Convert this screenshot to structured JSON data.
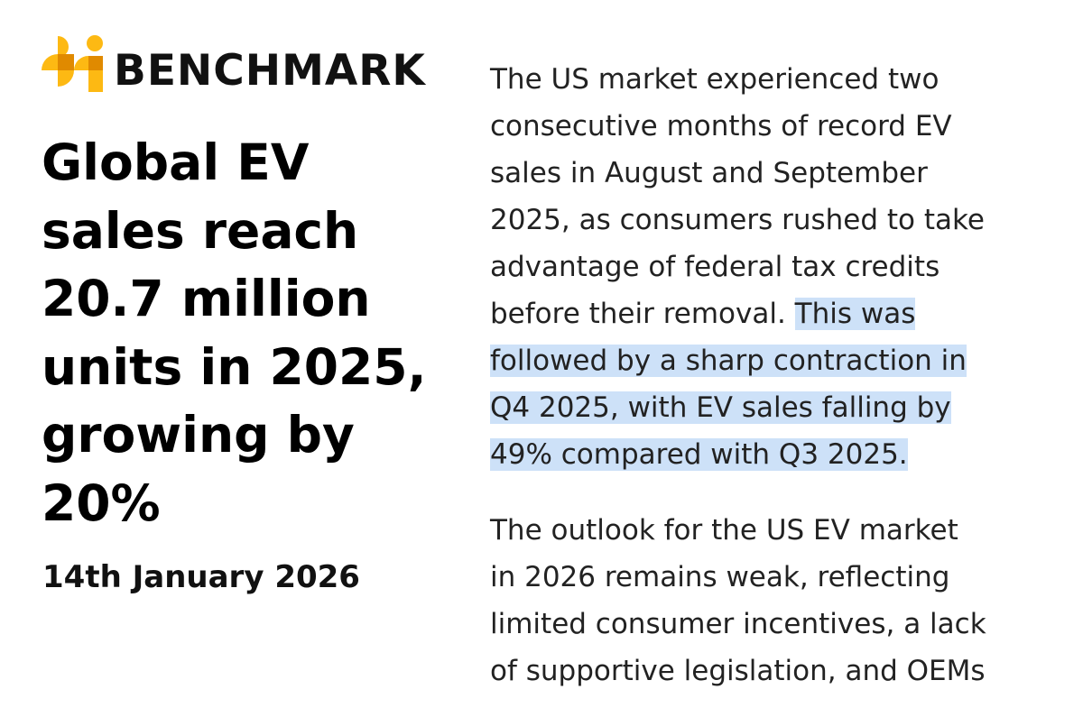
{
  "logo": {
    "text": "BENCHMARK",
    "colors": {
      "primary": "#FDB913",
      "dark": "#E08A00"
    }
  },
  "title_lines": [
    "Global EV",
    "sales reach",
    "20.7 million",
    "units in 2025,",
    "growing by",
    "20%"
  ],
  "date": "14th January 2026",
  "paragraph1": {
    "lines": [
      "The US market experienced two",
      "consecutive months of record EV",
      "sales in August and September",
      "2025, as consumers rushed to take",
      "advantage of federal tax credits"
    ],
    "line6_plain": "before their removal. ",
    "line6_highlight": "This was",
    "highlight_lines": [
      "followed by a sharp contraction in",
      "Q4 2025, with EV sales falling by",
      "49% compared with Q3 2025."
    ],
    "highlight_color": "#cde1f8"
  },
  "paragraph2": {
    "lines": [
      "The outlook for the US EV market",
      "in 2026 remains weak, reflecting",
      "limited consumer incentives, a lack",
      "of supportive legislation, and OEMs"
    ]
  }
}
